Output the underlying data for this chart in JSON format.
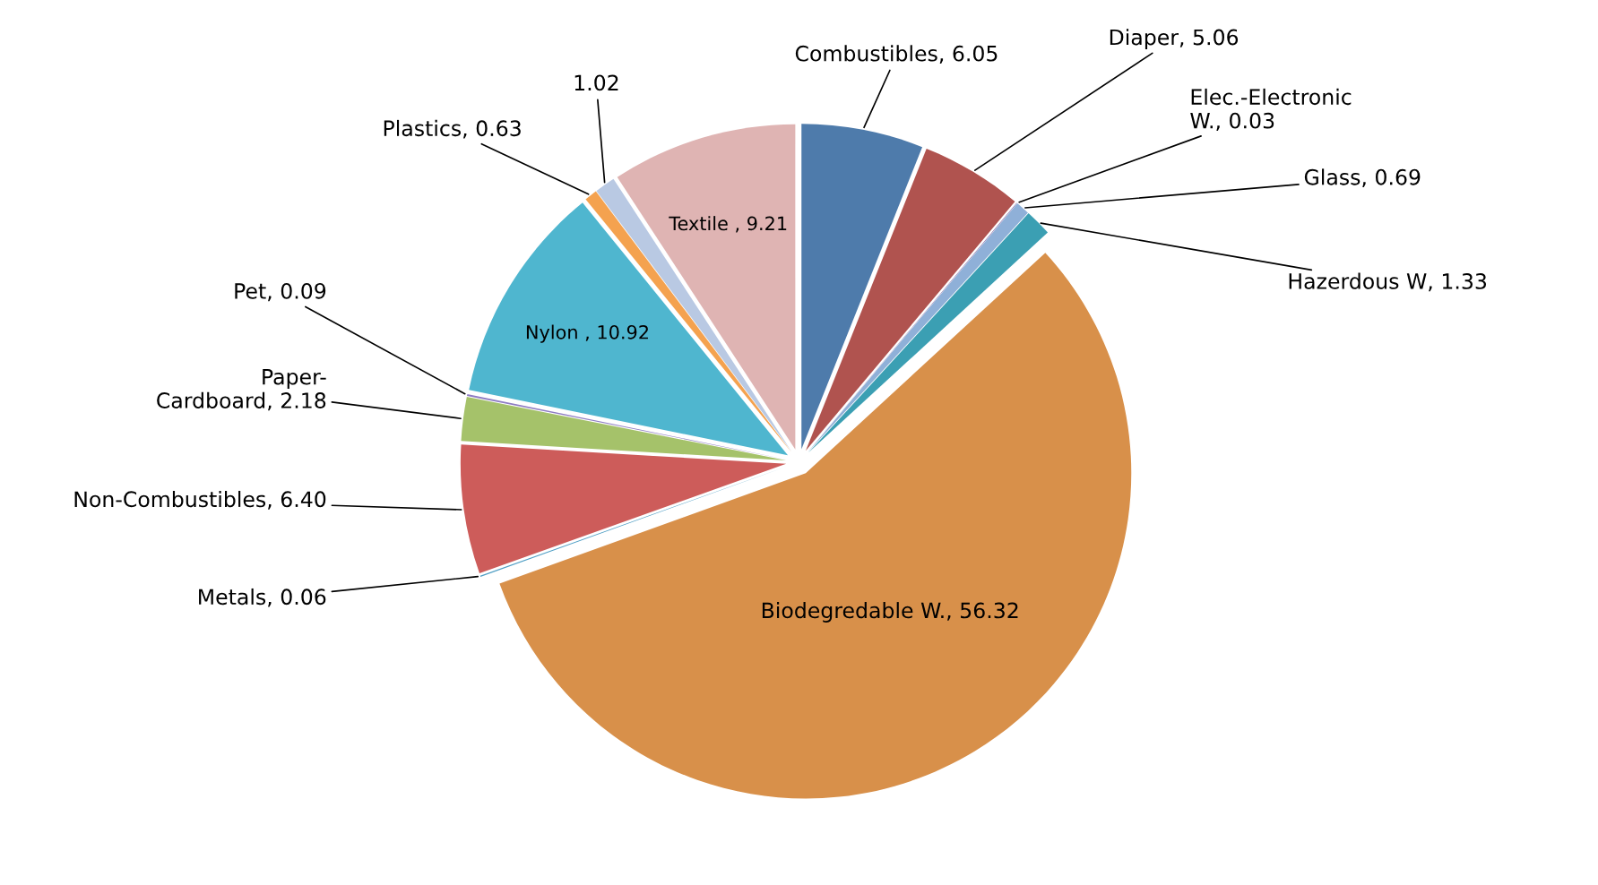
{
  "chart_data": {
    "type": "pie",
    "categories": [
      "Combustibles",
      "Diaper",
      "Elec.-Electronic W.",
      "Glass",
      "Hazerdous W",
      "Biodegredable W.",
      "Metals",
      "Non-Combustibles",
      "Paper-Cardboard",
      "Pet",
      "Nylon ",
      "Plastics",
      null,
      "Textile "
    ],
    "values": [
      6.05,
      5.06,
      0.03,
      0.69,
      1.33,
      56.32,
      0.06,
      6.4,
      2.18,
      0.09,
      10.92,
      0.63,
      1.02,
      9.21
    ],
    "value_labels": [
      "6.05",
      "5.06",
      "0.03",
      "0.69",
      "1.33",
      "56.32",
      "0.06",
      "6.40",
      "2.18",
      "0.09",
      "10.92",
      "0.63",
      "1.02",
      "9.21"
    ],
    "colors": [
      "#4e7bab",
      "#b0534f",
      "#8064a2",
      "#8fb0d8",
      "#3b9fb3",
      "#d8904a",
      "#4f9ec4",
      "#cd5c5a",
      "#a5c26a",
      "#8e7cc3",
      "#4fb6cf",
      "#f4a24f",
      "#b9c9e3",
      "#dfb4b3"
    ],
    "legend": false
  }
}
